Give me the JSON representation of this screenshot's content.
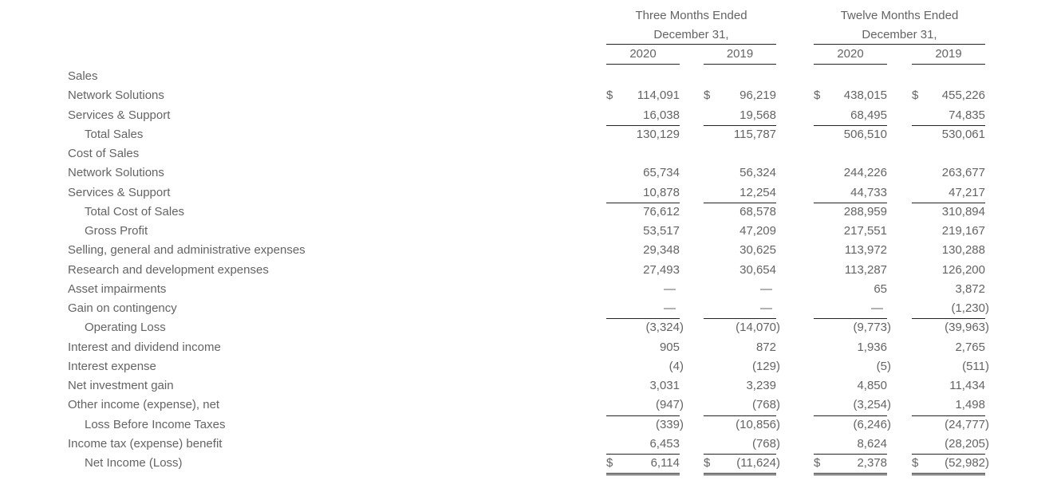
{
  "colors": {
    "text": "#646464",
    "rule": "#222222",
    "background": "#ffffff"
  },
  "table": {
    "currency_symbol": "$",
    "col_groups": [
      {
        "title": "Three Months Ended",
        "subtitle": "December 31,",
        "years": [
          "2020",
          "2019"
        ]
      },
      {
        "title": "Twelve Months Ended",
        "subtitle": "December 31,",
        "years": [
          "2020",
          "2019"
        ]
      }
    ],
    "rows": [
      {
        "label": "Sales",
        "section": true,
        "values": null
      },
      {
        "label": "Network Solutions",
        "dollar": true,
        "values": [
          "114,091",
          "96,219",
          "438,015",
          "455,226"
        ]
      },
      {
        "label": "Services & Support",
        "underline": true,
        "values": [
          "16,038",
          "19,568",
          "68,495",
          "74,835"
        ]
      },
      {
        "label": "Total Sales",
        "indent": true,
        "values": [
          "130,129",
          "115,787",
          "506,510",
          "530,061"
        ]
      },
      {
        "label": "Cost of Sales",
        "section": true,
        "values": null
      },
      {
        "label": "Network Solutions",
        "values": [
          "65,734",
          "56,324",
          "244,226",
          "263,677"
        ]
      },
      {
        "label": "Services & Support",
        "underline": true,
        "values": [
          "10,878",
          "12,254",
          "44,733",
          "47,217"
        ]
      },
      {
        "label": "Total Cost of Sales",
        "indent": true,
        "values": [
          "76,612",
          "68,578",
          "288,959",
          "310,894"
        ]
      },
      {
        "label": "Gross Profit",
        "indent": true,
        "values": [
          "53,517",
          "47,209",
          "217,551",
          "219,167"
        ]
      },
      {
        "label": "Selling, general and administrative expenses",
        "values": [
          "29,348",
          "30,625",
          "113,972",
          "130,288"
        ]
      },
      {
        "label": "Research and development expenses",
        "values": [
          "27,493",
          "30,654",
          "113,287",
          "126,200"
        ]
      },
      {
        "label": "Asset impairments",
        "values": [
          "—",
          "—",
          "65",
          "3,872"
        ]
      },
      {
        "label": "Gain on contingency",
        "underline": true,
        "values": [
          "—",
          "—",
          "—",
          "(1,230)"
        ]
      },
      {
        "label": "Operating Loss",
        "indent": true,
        "values": [
          "(3,324)",
          "(14,070)",
          "(9,773)",
          "(39,963)"
        ]
      },
      {
        "label": "Interest and dividend income",
        "values": [
          "905",
          "872",
          "1,936",
          "2,765"
        ]
      },
      {
        "label": "Interest expense",
        "values": [
          "(4)",
          "(129)",
          "(5)",
          "(511)"
        ]
      },
      {
        "label": "Net investment gain",
        "values": [
          "3,031",
          "3,239",
          "4,850",
          "11,434"
        ]
      },
      {
        "label": "Other income (expense), net",
        "underline": true,
        "values": [
          "(947)",
          "(768)",
          "(3,254)",
          "1,498"
        ]
      },
      {
        "label": "Loss Before Income Taxes",
        "indent": true,
        "values": [
          "(339)",
          "(10,856)",
          "(6,246)",
          "(24,777)"
        ]
      },
      {
        "label": "Income tax (expense) benefit",
        "underline": true,
        "values": [
          "6,453",
          "(768)",
          "8,624",
          "(28,205)"
        ]
      },
      {
        "label": "Net Income (Loss)",
        "indent": true,
        "dollar": true,
        "double_underline": true,
        "values": [
          "6,114",
          "(11,624)",
          "2,378",
          "(52,982)"
        ]
      }
    ]
  }
}
